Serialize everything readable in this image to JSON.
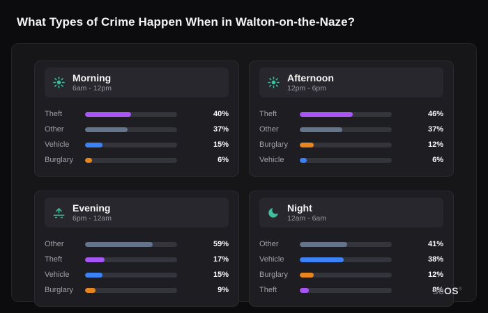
{
  "page": {
    "title": "What Types of Crime Happen When in Walton-on-the-Naze?"
  },
  "brand": {
    "prefix": "sc",
    "suffix": "OS",
    "registered": "®"
  },
  "colors": {
    "theft": "#a855f7",
    "other": "#64748b",
    "vehicle": "#3b82f6",
    "burglary": "#e8851e",
    "icon": "#3fbf9f",
    "track": "#34343c"
  },
  "chart_data": [
    {
      "type": "bar",
      "orientation": "horizontal",
      "title": "Morning",
      "subtitle": "6am - 12pm",
      "icon": "sun-icon",
      "unit": "%",
      "xmax": 80,
      "categories": [
        "Theft",
        "Other",
        "Vehicle",
        "Burglary"
      ],
      "values": [
        40,
        37,
        15,
        6
      ],
      "values_display": [
        "40%",
        "37%",
        "15%",
        "6%"
      ],
      "colors": [
        "#a855f7",
        "#64748b",
        "#3b82f6",
        "#e8851e"
      ]
    },
    {
      "type": "bar",
      "orientation": "horizontal",
      "title": "Afternoon",
      "subtitle": "12pm - 6pm",
      "icon": "sun-icon",
      "unit": "%",
      "xmax": 80,
      "categories": [
        "Theft",
        "Other",
        "Burglary",
        "Vehicle"
      ],
      "values": [
        46,
        37,
        12,
        6
      ],
      "values_display": [
        "46%",
        "37%",
        "12%",
        "6%"
      ],
      "colors": [
        "#a855f7",
        "#64748b",
        "#e8851e",
        "#3b82f6"
      ]
    },
    {
      "type": "bar",
      "orientation": "horizontal",
      "title": "Evening",
      "subtitle": "6pm - 12am",
      "icon": "sunset-icon",
      "unit": "%",
      "xmax": 80,
      "categories": [
        "Other",
        "Theft",
        "Vehicle",
        "Burglary"
      ],
      "values": [
        59,
        17,
        15,
        9
      ],
      "values_display": [
        "59%",
        "17%",
        "15%",
        "9%"
      ],
      "colors": [
        "#64748b",
        "#a855f7",
        "#3b82f6",
        "#e8851e"
      ]
    },
    {
      "type": "bar",
      "orientation": "horizontal",
      "title": "Night",
      "subtitle": "12am - 6am",
      "icon": "moon-icon",
      "unit": "%",
      "xmax": 80,
      "categories": [
        "Other",
        "Vehicle",
        "Burglary",
        "Theft"
      ],
      "values": [
        41,
        38,
        12,
        8
      ],
      "values_display": [
        "41%",
        "38%",
        "12%",
        "8%"
      ],
      "colors": [
        "#64748b",
        "#3b82f6",
        "#e8851e",
        "#a855f7"
      ]
    }
  ]
}
